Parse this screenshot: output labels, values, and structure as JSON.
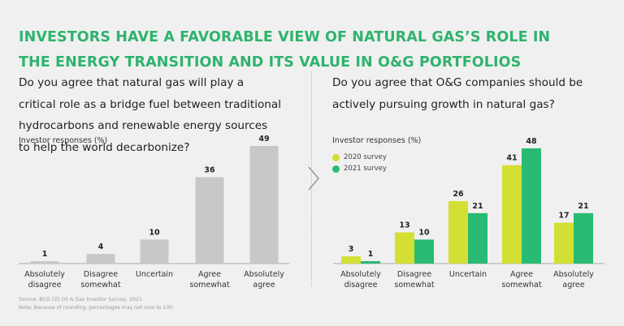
{
  "title": {
    "lines": [
      "INVESTORS HAVE A FAVORABLE VIEW OF NATURAL GAS’S ROLE IN",
      "THE ENERGY TRANSITION AND ITS VALUE IN O&G PORTFOLIOS"
    ],
    "color": "#2fb36e"
  },
  "left_panel": {
    "question_lines": [
      "Do you agree that natural gas will play a",
      "critical role as a bridge fuel between traditional",
      "hydrocarbons and renewable energy sources",
      "to help the world decarbonize?"
    ],
    "subtitle": "Investor responses (%)"
  },
  "right_panel": {
    "question_lines": [
      "Do you agree that O&G companies should be",
      "actively pursuing growth in natural gas?"
    ],
    "subtitle": "Investor responses (%)",
    "legend": [
      {
        "label": "2020 survey",
        "color": "#d4df33"
      },
      {
        "label": "2021 survey",
        "color": "#29ba74"
      }
    ]
  },
  "icons": {
    "arrow": "chevron-right-icon"
  },
  "footnotes": {
    "source": "Source: BCG CEI Oil & Gas Investor Survey, 2021.",
    "note": "Note: Because of rounding, percentages may not sum to 100."
  },
  "chart_data": [
    {
      "type": "bar",
      "title": "Do you agree that natural gas will play a critical role as a bridge fuel between traditional hydrocarbons and renewable energy sources to help the world decarbonize?",
      "ylabel": "Investor responses (%)",
      "xlabel": "",
      "categories": [
        [
          "Absolutely",
          "disagree"
        ],
        [
          "Disagree",
          "somewhat"
        ],
        [
          "Uncertain"
        ],
        [
          "Agree",
          "somewhat"
        ],
        [
          "Absolutely",
          "agree"
        ]
      ],
      "values": [
        1,
        4,
        10,
        36,
        49
      ],
      "color": "#c8c8c8",
      "ylim": [
        0,
        50
      ],
      "grid": false,
      "legend": "none"
    },
    {
      "type": "bar",
      "title": "Do you agree that O&G companies should be actively pursuing growth in natural gas?",
      "ylabel": "Investor responses (%)",
      "xlabel": "",
      "categories": [
        [
          "Absolutely",
          "disagree"
        ],
        [
          "Disagree",
          "somewhat"
        ],
        [
          "Uncertain"
        ],
        [
          "Agree",
          "somewhat"
        ],
        [
          "Absolutely",
          "agree"
        ]
      ],
      "series": [
        {
          "name": "2020 survey",
          "values": [
            3,
            13,
            26,
            41,
            17
          ],
          "color": "#d4df33"
        },
        {
          "name": "2021 survey",
          "values": [
            1,
            10,
            21,
            48,
            21
          ],
          "color": "#29ba74"
        }
      ],
      "ylim": [
        0,
        50
      ],
      "grid": false,
      "legend": "top-left"
    }
  ]
}
